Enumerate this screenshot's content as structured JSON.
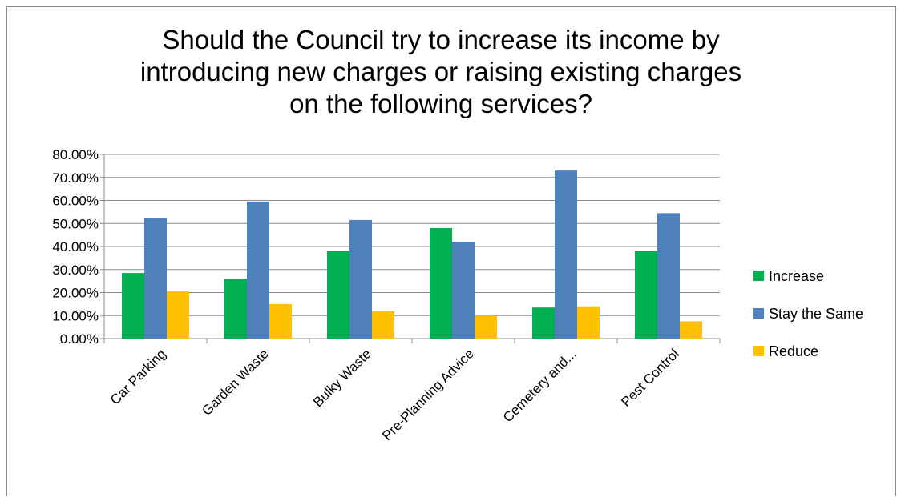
{
  "chart_data": {
    "type": "bar",
    "title": "Should the Council try to increase its income by\nintroducing new charges or raising existing charges\non the following services?",
    "categories": [
      "Car Parking",
      "Garden Waste",
      "Bulky Waste",
      "Pre-Planning Advice",
      "Cemetery and...",
      "Pest Control"
    ],
    "series": [
      {
        "name": "Increase",
        "color": "#00b050",
        "values": [
          28.5,
          26.0,
          38.0,
          48.0,
          13.5,
          38.0
        ]
      },
      {
        "name": "Stay the Same",
        "color": "#4f81bd",
        "values": [
          52.5,
          59.5,
          51.5,
          42.0,
          73.0,
          54.5
        ]
      },
      {
        "name": "Reduce",
        "color": "#ffc000",
        "values": [
          20.5,
          15.0,
          12.0,
          10.0,
          14.0,
          7.5
        ]
      }
    ],
    "y_tick_labels": [
      "0.00%",
      "10.00%",
      "20.00%",
      "30.00%",
      "40.00%",
      "50.00%",
      "60.00%",
      "70.00%",
      "80.00%"
    ],
    "ylim": [
      0,
      80
    ],
    "xlabel": "",
    "ylabel": "",
    "grid": true,
    "legend_position": "right"
  }
}
